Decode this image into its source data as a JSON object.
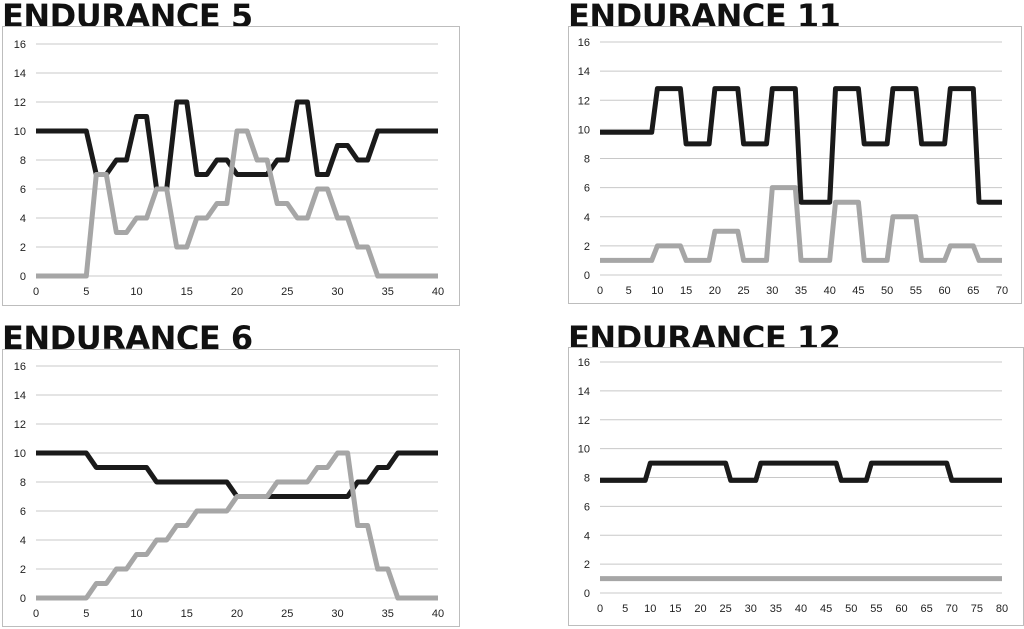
{
  "chart_data": [
    {
      "type": "line",
      "title": "ENDURANCE 5",
      "xlabel": "",
      "ylabel": "",
      "xlim": [
        0,
        40
      ],
      "ylim": [
        0,
        16
      ],
      "xticks": [
        0,
        5,
        10,
        15,
        20,
        25,
        30,
        35,
        40
      ],
      "yticks": [
        0,
        2,
        4,
        6,
        8,
        10,
        12,
        14,
        16
      ],
      "grid": "horizontal",
      "series": [
        {
          "color": "#1a1a1a",
          "points": [
            [
              0,
              10
            ],
            [
              5,
              10
            ],
            [
              6,
              7
            ],
            [
              7,
              7
            ],
            [
              8,
              8
            ],
            [
              9,
              8
            ],
            [
              10,
              11
            ],
            [
              11,
              11
            ],
            [
              12,
              6
            ],
            [
              13,
              6
            ],
            [
              14,
              12
            ],
            [
              15,
              12
            ],
            [
              16,
              7
            ],
            [
              17,
              7
            ],
            [
              18,
              8
            ],
            [
              19,
              8
            ],
            [
              20,
              7
            ],
            [
              23,
              7
            ],
            [
              24,
              8
            ],
            [
              25,
              8
            ],
            [
              26,
              12
            ],
            [
              27,
              12
            ],
            [
              28,
              7
            ],
            [
              29,
              7
            ],
            [
              30,
              9
            ],
            [
              31,
              9
            ],
            [
              32,
              8
            ],
            [
              33,
              8
            ],
            [
              34,
              10
            ],
            [
              40,
              10
            ]
          ]
        },
        {
          "color": "#a6a6a6",
          "points": [
            [
              0,
              0
            ],
            [
              5,
              0
            ],
            [
              6,
              7
            ],
            [
              7,
              7
            ],
            [
              8,
              3
            ],
            [
              9,
              3
            ],
            [
              10,
              4
            ],
            [
              11,
              4
            ],
            [
              12,
              6
            ],
            [
              13,
              6
            ],
            [
              14,
              2
            ],
            [
              15,
              2
            ],
            [
              16,
              4
            ],
            [
              17,
              4
            ],
            [
              18,
              5
            ],
            [
              19,
              5
            ],
            [
              20,
              10
            ],
            [
              21,
              10
            ],
            [
              22,
              8
            ],
            [
              23,
              8
            ],
            [
              24,
              5
            ],
            [
              25,
              5
            ],
            [
              26,
              4
            ],
            [
              27,
              4
            ],
            [
              28,
              6
            ],
            [
              29,
              6
            ],
            [
              30,
              4
            ],
            [
              31,
              4
            ],
            [
              32,
              2
            ],
            [
              33,
              2
            ],
            [
              34,
              0
            ],
            [
              40,
              0
            ]
          ]
        }
      ]
    },
    {
      "type": "line",
      "title": "ENDURANCE 11",
      "xlabel": "",
      "ylabel": "",
      "xlim": [
        0,
        70
      ],
      "ylim": [
        0,
        16
      ],
      "xticks": [
        0,
        5,
        10,
        15,
        20,
        25,
        30,
        35,
        40,
        45,
        50,
        55,
        60,
        65,
        70
      ],
      "yticks": [
        0,
        2,
        4,
        6,
        8,
        10,
        12,
        14,
        16
      ],
      "grid": "horizontal",
      "series": [
        {
          "color": "#1a1a1a",
          "points": [
            [
              0,
              9.8
            ],
            [
              9,
              9.8
            ],
            [
              10,
              12.8
            ],
            [
              14,
              12.8
            ],
            [
              15,
              9
            ],
            [
              19,
              9
            ],
            [
              20,
              12.8
            ],
            [
              24,
              12.8
            ],
            [
              25,
              9
            ],
            [
              29,
              9
            ],
            [
              30,
              12.8
            ],
            [
              34,
              12.8
            ],
            [
              35,
              5
            ],
            [
              40,
              5
            ],
            [
              41,
              12.8
            ],
            [
              45,
              12.8
            ],
            [
              46,
              9
            ],
            [
              50,
              9
            ],
            [
              51,
              12.8
            ],
            [
              55,
              12.8
            ],
            [
              56,
              9
            ],
            [
              60,
              9
            ],
            [
              61,
              12.8
            ],
            [
              65,
              12.8
            ],
            [
              66,
              5
            ],
            [
              70,
              5
            ]
          ]
        },
        {
          "color": "#a6a6a6",
          "points": [
            [
              0,
              1
            ],
            [
              9,
              1
            ],
            [
              10,
              2
            ],
            [
              14,
              2
            ],
            [
              15,
              1
            ],
            [
              19,
              1
            ],
            [
              20,
              3
            ],
            [
              24,
              3
            ],
            [
              25,
              1
            ],
            [
              29,
              1
            ],
            [
              30,
              6
            ],
            [
              34,
              6
            ],
            [
              35,
              1
            ],
            [
              40,
              1
            ],
            [
              41,
              5
            ],
            [
              45,
              5
            ],
            [
              46,
              1
            ],
            [
              50,
              1
            ],
            [
              51,
              4
            ],
            [
              55,
              4
            ],
            [
              56,
              1
            ],
            [
              60,
              1
            ],
            [
              61,
              2
            ],
            [
              65,
              2
            ],
            [
              66,
              1
            ],
            [
              70,
              1
            ]
          ]
        }
      ]
    },
    {
      "type": "line",
      "title": "ENDURANCE 6",
      "xlabel": "",
      "ylabel": "",
      "xlim": [
        0,
        40
      ],
      "ylim": [
        0,
        16
      ],
      "xticks": [
        0,
        5,
        10,
        15,
        20,
        25,
        30,
        35,
        40
      ],
      "yticks": [
        0,
        2,
        4,
        6,
        8,
        10,
        12,
        14,
        16
      ],
      "grid": "horizontal",
      "series": [
        {
          "color": "#1a1a1a",
          "points": [
            [
              0,
              10
            ],
            [
              5,
              10
            ],
            [
              6,
              9
            ],
            [
              11,
              9
            ],
            [
              12,
              8
            ],
            [
              19,
              8
            ],
            [
              20,
              7
            ],
            [
              31,
              7
            ],
            [
              32,
              8
            ],
            [
              33,
              8
            ],
            [
              34,
              9
            ],
            [
              35,
              9
            ],
            [
              36,
              10
            ],
            [
              40,
              10
            ]
          ]
        },
        {
          "color": "#a6a6a6",
          "points": [
            [
              0,
              0
            ],
            [
              5,
              0
            ],
            [
              6,
              1
            ],
            [
              7,
              1
            ],
            [
              8,
              2
            ],
            [
              9,
              2
            ],
            [
              10,
              3
            ],
            [
              11,
              3
            ],
            [
              12,
              4
            ],
            [
              13,
              4
            ],
            [
              14,
              5
            ],
            [
              15,
              5
            ],
            [
              16,
              6
            ],
            [
              19,
              6
            ],
            [
              20,
              7
            ],
            [
              23,
              7
            ],
            [
              24,
              8
            ],
            [
              27,
              8
            ],
            [
              28,
              9
            ],
            [
              29,
              9
            ],
            [
              30,
              10
            ],
            [
              31,
              10
            ],
            [
              32,
              5
            ],
            [
              33,
              5
            ],
            [
              34,
              2
            ],
            [
              35,
              2
            ],
            [
              36,
              0
            ],
            [
              40,
              0
            ]
          ]
        }
      ]
    },
    {
      "type": "line",
      "title": "ENDURANCE 12",
      "xlabel": "",
      "ylabel": "",
      "xlim": [
        0,
        80
      ],
      "ylim": [
        0,
        16
      ],
      "xticks": [
        0,
        5,
        10,
        15,
        20,
        25,
        30,
        35,
        40,
        45,
        50,
        55,
        60,
        65,
        70,
        75,
        80
      ],
      "yticks": [
        0,
        2,
        4,
        6,
        8,
        10,
        12,
        14,
        16
      ],
      "grid": "horizontal",
      "series": [
        {
          "color": "#1a1a1a",
          "points": [
            [
              0,
              7.8
            ],
            [
              9,
              7.8
            ],
            [
              10,
              9
            ],
            [
              25,
              9
            ],
            [
              26,
              7.8
            ],
            [
              31,
              7.8
            ],
            [
              32,
              9
            ],
            [
              47,
              9
            ],
            [
              48,
              7.8
            ],
            [
              53,
              7.8
            ],
            [
              54,
              9
            ],
            [
              69,
              9
            ],
            [
              70,
              7.8
            ],
            [
              80,
              7.8
            ]
          ]
        },
        {
          "color": "#a6a6a6",
          "points": [
            [
              0,
              1
            ],
            [
              80,
              1
            ]
          ]
        }
      ]
    }
  ]
}
